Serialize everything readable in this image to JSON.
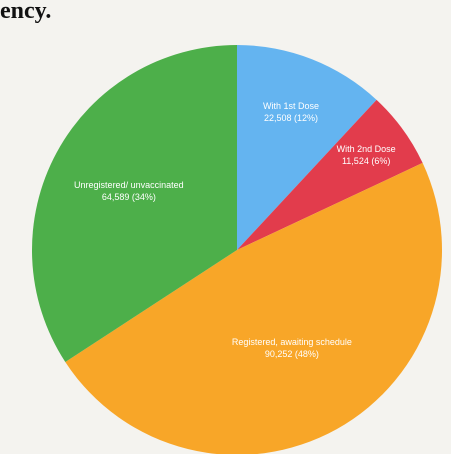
{
  "chart_data": {
    "type": "pie",
    "title": "ency.",
    "categories": [
      "With 1st Dose",
      "With 2nd Dose",
      "Registered, awaiting schedule",
      "Unregistered/ unvaccinated"
    ],
    "values": [
      22508,
      11524,
      90252,
      64589
    ],
    "value_labels": [
      "22,508 (12%)",
      "11,524 (6%)",
      "90,252 (48%)",
      "64,589 (34%)"
    ],
    "colors": [
      "#64b4f0",
      "#e23c4c",
      "#f8a628",
      "#4daf4a"
    ]
  }
}
